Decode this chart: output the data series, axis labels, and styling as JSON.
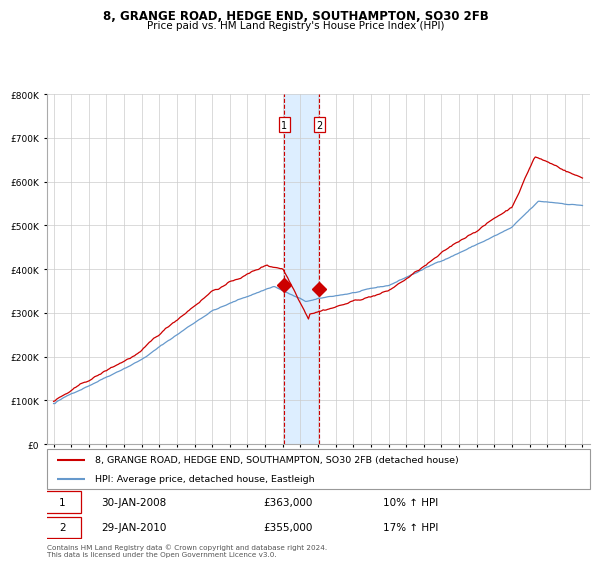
{
  "title1": "8, GRANGE ROAD, HEDGE END, SOUTHAMPTON, SO30 2FB",
  "title2": "Price paid vs. HM Land Registry's House Price Index (HPI)",
  "legend1": "8, GRANGE ROAD, HEDGE END, SOUTHAMPTON, SO30 2FB (detached house)",
  "legend2": "HPI: Average price, detached house, Eastleigh",
  "annotation1_date": "30-JAN-2008",
  "annotation1_price": "£363,000",
  "annotation1_hpi": "10% ↑ HPI",
  "annotation2_date": "29-JAN-2010",
  "annotation2_price": "£355,000",
  "annotation2_hpi": "17% ↑ HPI",
  "footer": "Contains HM Land Registry data © Crown copyright and database right 2024.\nThis data is licensed under the Open Government Licence v3.0.",
  "red_color": "#cc0000",
  "blue_color": "#6699cc",
  "shade_color": "#ddeeff",
  "grid_color": "#cccccc",
  "marker1_x": 2008.08,
  "marker1_y": 363000,
  "marker2_x": 2010.08,
  "marker2_y": 355000,
  "vline1_x": 2008.08,
  "vline2_x": 2010.08,
  "yticks": [
    0,
    100000,
    200000,
    300000,
    400000,
    500000,
    600000,
    700000,
    800000
  ],
  "xlim_left": 1994.6,
  "xlim_right": 2025.4,
  "ylim": [
    0,
    800000
  ]
}
